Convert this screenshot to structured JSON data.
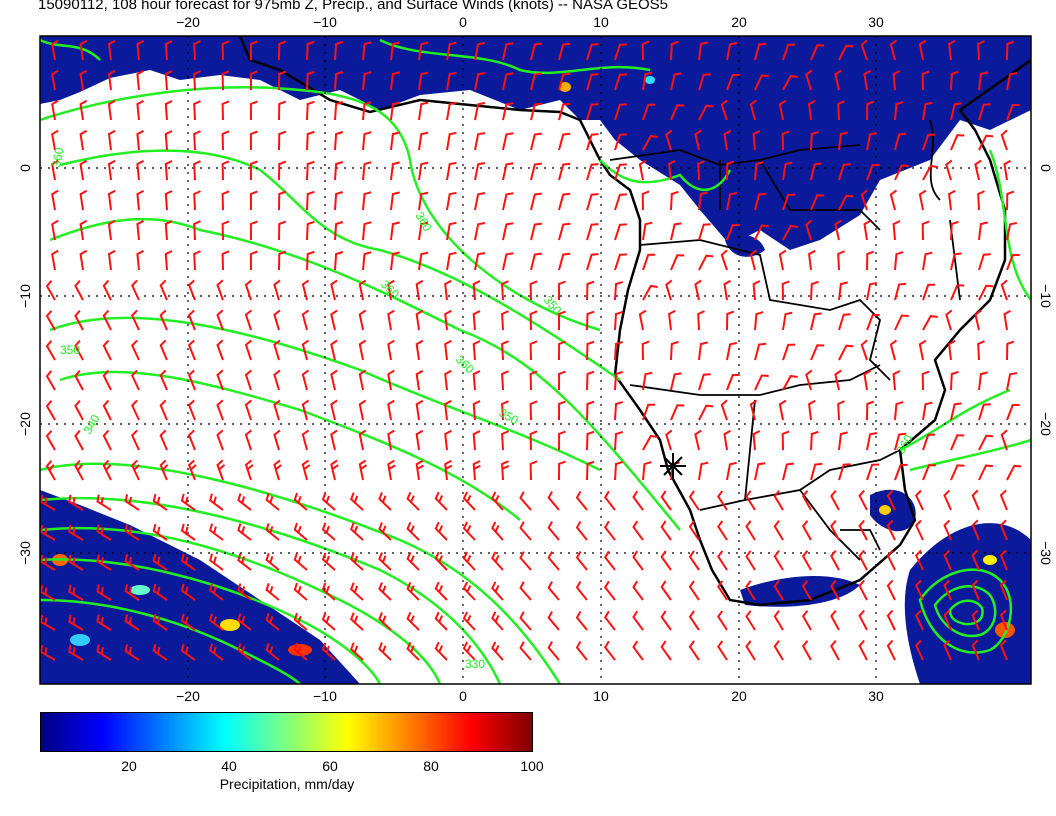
{
  "title": "15090112, 108 hour forecast for 975mb Z, Precip., and Surface Winds (knots) -- NASA GEOS5",
  "map": {
    "lon_ticks_top": [
      "−20",
      "−10",
      "0",
      "10",
      "20",
      "30"
    ],
    "lon_ticks_bottom": [
      "−20",
      "−10",
      "0",
      "10",
      "20",
      "30"
    ],
    "lat_ticks_left": [
      "0",
      "−10",
      "−20",
      "−30"
    ],
    "lat_ticks_right": [
      "0",
      "−10",
      "−20",
      "−30"
    ],
    "contour_labels": [
      "360",
      "360",
      "360",
      "350",
      "350",
      "360",
      "350",
      "340",
      "360",
      "330"
    ],
    "marker": "location-star",
    "colors": {
      "contour": "#22ee22",
      "barb": "#ff1111",
      "precip_dark": "#0a1a9a",
      "coast": "#000000"
    }
  },
  "colorbar": {
    "ticks": [
      "20",
      "40",
      "60",
      "80",
      "100"
    ],
    "label": "Precipitation, mm/day",
    "range": [
      0,
      100
    ]
  }
}
